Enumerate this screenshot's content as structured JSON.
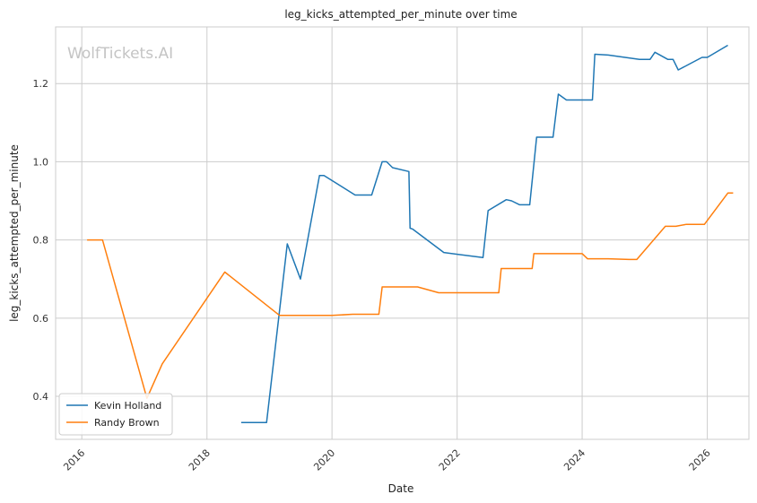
{
  "chart_data": {
    "type": "line",
    "title": "leg_kicks_attempted_per_minute over time",
    "xlabel": "Date",
    "ylabel": "leg_kicks_attempted_per_minute",
    "watermark": "WolfTickets.AI",
    "xlim": [
      "2015-08-01",
      "2026-09-01"
    ],
    "ylim": [
      0.29,
      1.345
    ],
    "x_ticks": [
      "2016",
      "2018",
      "2020",
      "2022",
      "2024",
      "2026"
    ],
    "y_ticks": [
      "0.4",
      "0.6",
      "0.8",
      "1.0",
      "1.2"
    ],
    "grid": true,
    "legend_position": "bottom-left",
    "series": [
      {
        "name": "Kevin Holland",
        "color": "#1f77b4",
        "points": [
          [
            "2018-07-20",
            0.333
          ],
          [
            "2018-12-15",
            0.333
          ],
          [
            "2019-04-15",
            0.79
          ],
          [
            "2019-07-01",
            0.7
          ],
          [
            "2019-10-20",
            0.965
          ],
          [
            "2019-11-15",
            0.965
          ],
          [
            "2020-05-15",
            0.915
          ],
          [
            "2020-08-20",
            0.915
          ],
          [
            "2020-10-20",
            1.0
          ],
          [
            "2020-11-15",
            1.0
          ],
          [
            "2020-12-20",
            0.985
          ],
          [
            "2021-03-25",
            0.975
          ],
          [
            "2021-04-01",
            0.83
          ],
          [
            "2021-04-15",
            0.828
          ],
          [
            "2021-10-15",
            0.768
          ],
          [
            "2022-06-01",
            0.755
          ],
          [
            "2022-07-01",
            0.875
          ],
          [
            "2022-10-15",
            0.903
          ],
          [
            "2022-11-15",
            0.9
          ],
          [
            "2023-01-01",
            0.89
          ],
          [
            "2023-03-01",
            0.89
          ],
          [
            "2023-04-10",
            1.063
          ],
          [
            "2023-07-15",
            1.063
          ],
          [
            "2023-08-15",
            1.173
          ],
          [
            "2023-10-01",
            1.158
          ],
          [
            "2024-03-01",
            1.158
          ],
          [
            "2024-03-15",
            1.275
          ],
          [
            "2024-06-01",
            1.273
          ],
          [
            "2024-12-01",
            1.262
          ],
          [
            "2025-02-01",
            1.262
          ],
          [
            "2025-03-01",
            1.28
          ],
          [
            "2025-05-15",
            1.262
          ],
          [
            "2025-06-15",
            1.262
          ],
          [
            "2025-07-15",
            1.235
          ],
          [
            "2025-12-01",
            1.267
          ],
          [
            "2026-01-01",
            1.267
          ],
          [
            "2026-05-01",
            1.298
          ]
        ]
      },
      {
        "name": "Randy Brown",
        "color": "#ff7f0e",
        "points": [
          [
            "2016-02-01",
            0.8
          ],
          [
            "2016-05-01",
            0.8
          ],
          [
            "2017-01-15",
            0.395
          ],
          [
            "2017-04-15",
            0.483
          ],
          [
            "2018-04-15",
            0.718
          ],
          [
            "2019-03-01",
            0.607
          ],
          [
            "2020-01-01",
            0.607
          ],
          [
            "2020-05-01",
            0.61
          ],
          [
            "2020-10-01",
            0.61
          ],
          [
            "2020-10-20",
            0.68
          ],
          [
            "2021-05-15",
            0.68
          ],
          [
            "2021-09-15",
            0.665
          ],
          [
            "2022-09-01",
            0.665
          ],
          [
            "2022-09-15",
            0.727
          ],
          [
            "2023-03-15",
            0.727
          ],
          [
            "2023-03-25",
            0.765
          ],
          [
            "2024-01-01",
            0.765
          ],
          [
            "2024-02-01",
            0.752
          ],
          [
            "2024-06-01",
            0.752
          ],
          [
            "2024-10-01",
            0.75
          ],
          [
            "2024-11-15",
            0.75
          ],
          [
            "2025-05-01",
            0.835
          ],
          [
            "2025-07-01",
            0.835
          ],
          [
            "2025-09-01",
            0.84
          ],
          [
            "2025-12-15",
            0.84
          ],
          [
            "2026-05-01",
            0.92
          ],
          [
            "2026-06-01",
            0.92
          ]
        ]
      }
    ]
  }
}
